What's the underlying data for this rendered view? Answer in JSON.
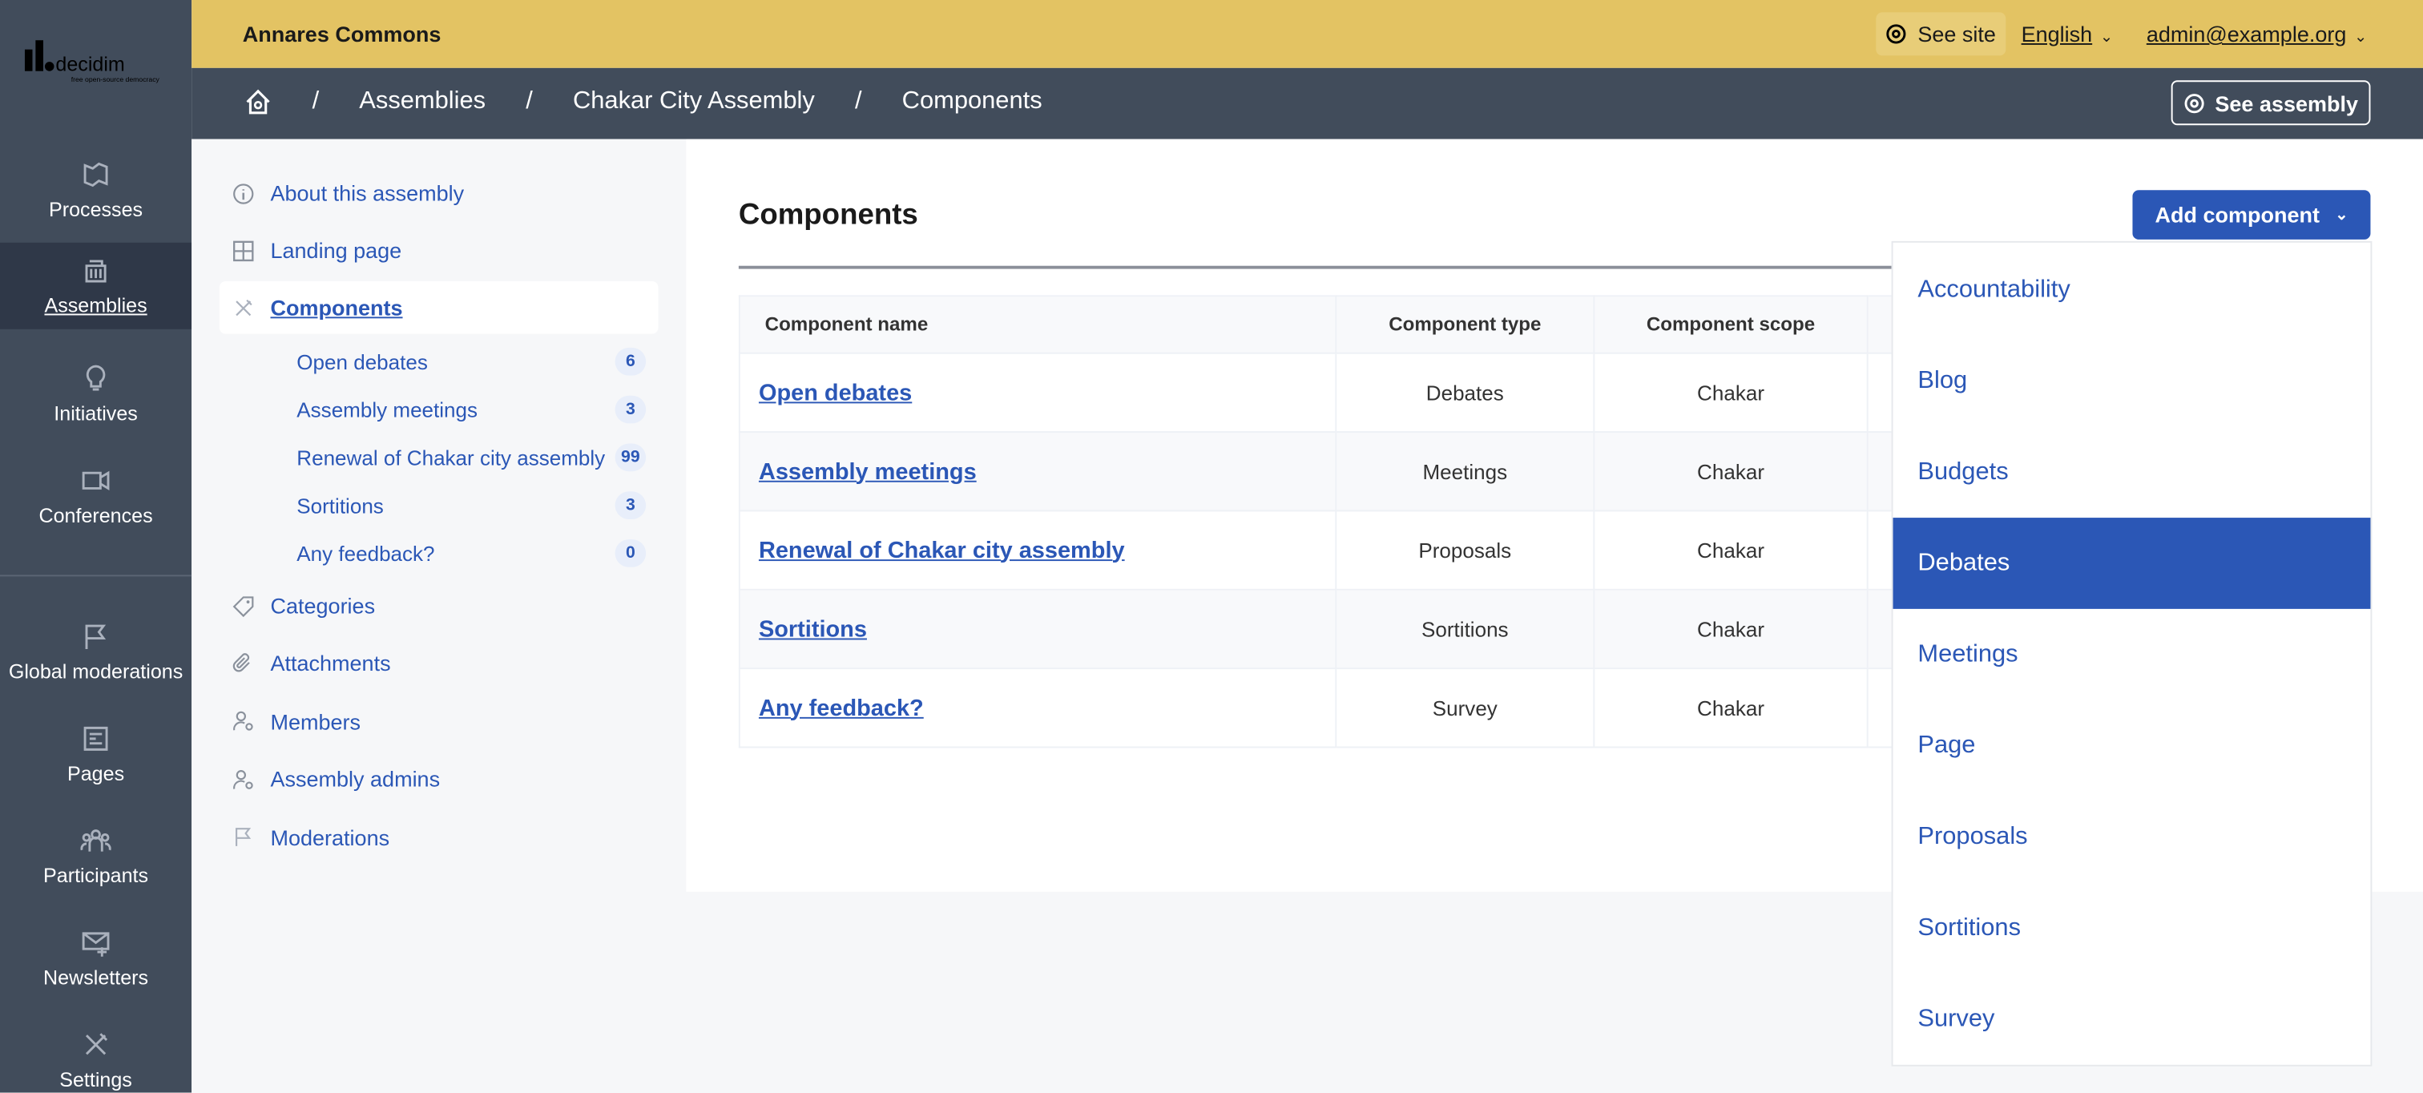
{
  "brand": {
    "logo_text": "decidim",
    "logo_tagline": "free open-source democracy",
    "accent": "#2b57b6",
    "topbar_color": "#e3c363",
    "sidebar_color": "#414c5b"
  },
  "sidebar": {
    "items": [
      {
        "label": "Processes",
        "icon": "map-icon"
      },
      {
        "label": "Assemblies",
        "icon": "government-icon",
        "active": true
      },
      {
        "label": "Initiatives",
        "icon": "lightbulb-icon"
      },
      {
        "label": "Conferences",
        "icon": "video-icon"
      },
      {
        "label": "Global moderations",
        "icon": "flag-icon"
      },
      {
        "label": "Pages",
        "icon": "page-icon"
      },
      {
        "label": "Participants",
        "icon": "group-icon"
      },
      {
        "label": "Newsletters",
        "icon": "mail-icon"
      },
      {
        "label": "Settings",
        "icon": "tools-icon"
      }
    ]
  },
  "topbar": {
    "org_name": "Annares Commons",
    "see_site": "See site",
    "language": "English",
    "user": "admin@example.org"
  },
  "breadcrumb": {
    "items": [
      "Assemblies",
      "Chakar City Assembly",
      "Components"
    ],
    "see_assembly": "See assembly"
  },
  "subnav": {
    "items": [
      {
        "label": "About this assembly",
        "icon": "info-icon"
      },
      {
        "label": "Landing page",
        "icon": "layout-icon"
      },
      {
        "label": "Components",
        "icon": "tools-icon",
        "active": true
      }
    ],
    "components": [
      {
        "label": "Open debates",
        "count": "6"
      },
      {
        "label": "Assembly meetings",
        "count": "3"
      },
      {
        "label": "Renewal of Chakar city assembly",
        "count": "99"
      },
      {
        "label": "Sortitions",
        "count": "3"
      },
      {
        "label": "Any feedback?",
        "count": "0"
      }
    ],
    "more": [
      {
        "label": "Categories",
        "icon": "tag-icon"
      },
      {
        "label": "Attachments",
        "icon": "attachment-icon"
      },
      {
        "label": "Members",
        "icon": "user-settings-icon"
      },
      {
        "label": "Assembly admins",
        "icon": "user-settings-icon"
      },
      {
        "label": "Moderations",
        "icon": "flag-icon"
      }
    ]
  },
  "main": {
    "title": "Components",
    "add_button": "Add component",
    "table": {
      "headers": [
        "Component name",
        "Component type",
        "Component scope"
      ],
      "rows": [
        [
          "Open debates",
          "Debates",
          "Chakar"
        ],
        [
          "Assembly meetings",
          "Meetings",
          "Chakar"
        ],
        [
          "Renewal of Chakar city assembly",
          "Proposals",
          "Chakar"
        ],
        [
          "Sortitions",
          "Sortitions",
          "Chakar"
        ],
        [
          "Any feedback?",
          "Survey",
          "Chakar"
        ]
      ]
    },
    "dropdown": {
      "items": [
        "Accountability",
        "Blog",
        "Budgets",
        "Debates",
        "Meetings",
        "Page",
        "Proposals",
        "Sortitions",
        "Survey"
      ],
      "highlighted": "Debates"
    }
  }
}
